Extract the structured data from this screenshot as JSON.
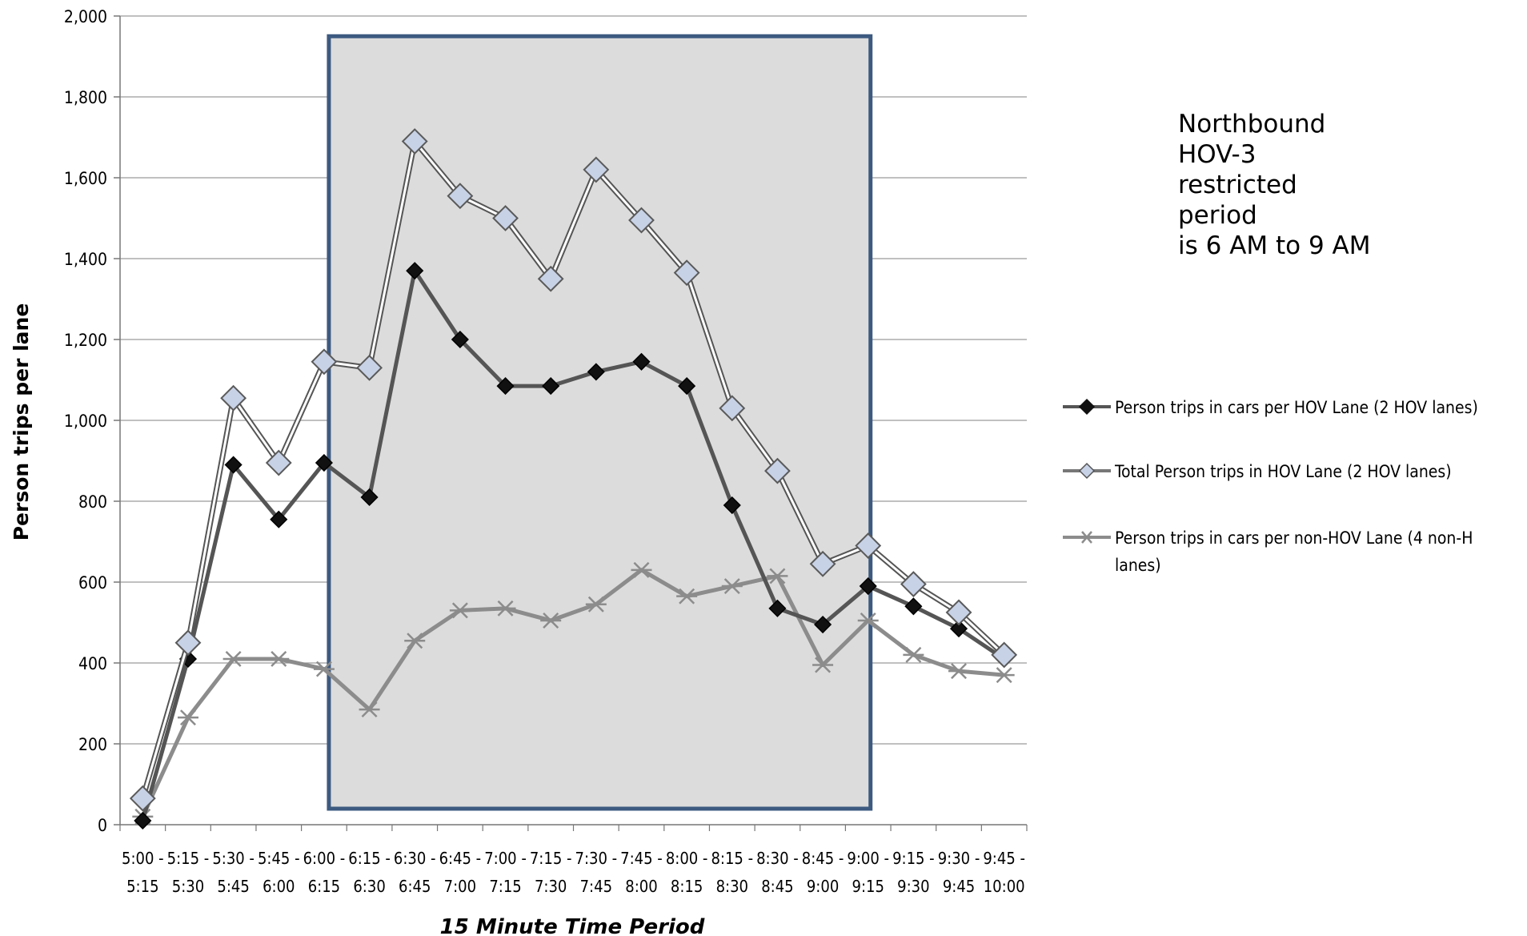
{
  "annotation": {
    "lines": [
      "Northbound",
      "HOV-3",
      "restricted",
      "period",
      "is 6 AM to 9 AM"
    ]
  },
  "chart_data": {
    "type": "line",
    "title": "",
    "xlabel": "15 Minute Time Period",
    "ylabel": "Person trips per lane",
    "ylim": [
      0,
      2000
    ],
    "yticks": [
      0,
      200,
      400,
      600,
      800,
      1000,
      1200,
      1400,
      1600,
      1800,
      2000
    ],
    "ytick_labels": [
      "0",
      "200",
      "400",
      "600",
      "800",
      "1,000",
      "1,200",
      "1,400",
      "1,600",
      "1,800",
      "2,000"
    ],
    "grid": true,
    "legend_position": "right",
    "categories": [
      [
        "5:00 -",
        "5:15"
      ],
      [
        "5:15 -",
        "5:30"
      ],
      [
        "5:30 -",
        "5:45"
      ],
      [
        "5:45 -",
        "6:00"
      ],
      [
        "6:00 -",
        "6:15"
      ],
      [
        "6:15 -",
        "6:30"
      ],
      [
        "6:30 -",
        "6:45"
      ],
      [
        "6:45 -",
        "7:00"
      ],
      [
        "7:00 -",
        "7:15"
      ],
      [
        "7:15 -",
        "7:30"
      ],
      [
        "7:30 -",
        "7:45"
      ],
      [
        "7:45 -",
        "8:00"
      ],
      [
        "8:00 -",
        "8:15"
      ],
      [
        "8:15 -",
        "8:30"
      ],
      [
        "8:30 -",
        "8:45"
      ],
      [
        "8:45 -",
        "9:00"
      ],
      [
        "9:00 -",
        "9:15"
      ],
      [
        "9:15 -",
        "9:30"
      ],
      [
        "9:30 -",
        "9:45"
      ],
      [
        "9:45 -",
        "10:00"
      ]
    ],
    "highlight_period": {
      "from": "6:00",
      "to": "9:00",
      "ymax": 1950,
      "fill": "#dcdcdc",
      "border": "#3d5a80"
    },
    "series": [
      {
        "name": "Person trips in cars per HOV Lane (2 HOV lanes)",
        "marker": "filled-diamond",
        "color": "#555555",
        "marker_color": "#111111",
        "values": [
          10,
          410,
          890,
          755,
          895,
          810,
          1370,
          1200,
          1085,
          1085,
          1120,
          1145,
          1085,
          790,
          535,
          495,
          590,
          540,
          485,
          410
        ]
      },
      {
        "name": "Total Person trips in HOV Lane (2 HOV lanes)",
        "marker": "open-diamond",
        "color": "#777777",
        "marker_color": "#c8d2e6",
        "values": [
          65,
          450,
          1055,
          895,
          1145,
          1130,
          1690,
          1555,
          1500,
          1350,
          1620,
          1495,
          1365,
          1030,
          875,
          645,
          690,
          595,
          525,
          420
        ]
      },
      {
        "name": "Person trips in cars per non-HOV Lane (4 non-H lanes)",
        "marker": "asterisk",
        "color": "#8c8c8c",
        "marker_color": "#8c8c8c",
        "values": [
          20,
          265,
          410,
          410,
          385,
          285,
          455,
          530,
          535,
          505,
          545,
          630,
          565,
          590,
          615,
          395,
          505,
          420,
          380,
          370
        ]
      }
    ]
  }
}
